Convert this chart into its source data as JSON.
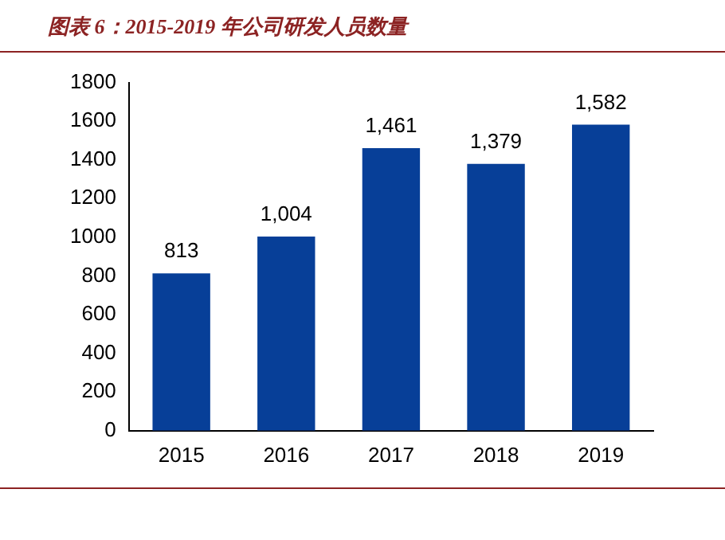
{
  "chart_data": {
    "type": "bar",
    "title": "图表 6：2015-2019 年公司研发人员数量",
    "categories": [
      "2015",
      "2016",
      "2017",
      "2018",
      "2019"
    ],
    "values": [
      813,
      1004,
      1461,
      1379,
      1582
    ],
    "value_labels": [
      "813",
      "1,004",
      "1,461",
      "1,379",
      "1,582"
    ],
    "color": "#073f98",
    "ylim": [
      0,
      1800
    ],
    "yticks": [
      0,
      200,
      400,
      600,
      800,
      1000,
      1200,
      1400,
      1600,
      1800
    ],
    "grid": false,
    "legend": false
  }
}
